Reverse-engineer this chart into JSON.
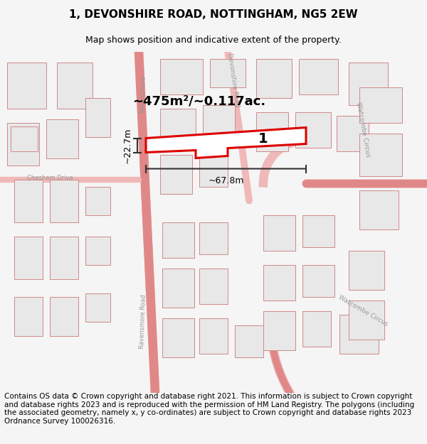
{
  "title": "1, DEVONSHIRE ROAD, NOTTINGHAM, NG5 2EW",
  "subtitle": "Map shows position and indicative extent of the property.",
  "footer": "Contains OS data © Crown copyright and database right 2021. This information is subject to Crown copyright and database rights 2023 and is reproduced with the permission of HM Land Registry. The polygons (including the associated geometry, namely x, y co-ordinates) are subject to Crown copyright and database rights 2023 Ordnance Survey 100026316.",
  "background_color": "#f5f5f5",
  "map_background": "#ffffff",
  "road_color": "#f0b8b8",
  "road_outline": "#e08888",
  "building_fill": "#e8e8e8",
  "building_stroke": "#d08888",
  "highlight_color": "#dd0000",
  "area_text": "~475m²/~0.117ac.",
  "width_text": "~67.8m",
  "height_text": "~22.7m",
  "label_text": "1",
  "title_fontsize": 11,
  "subtitle_fontsize": 9,
  "footer_fontsize": 7.5
}
